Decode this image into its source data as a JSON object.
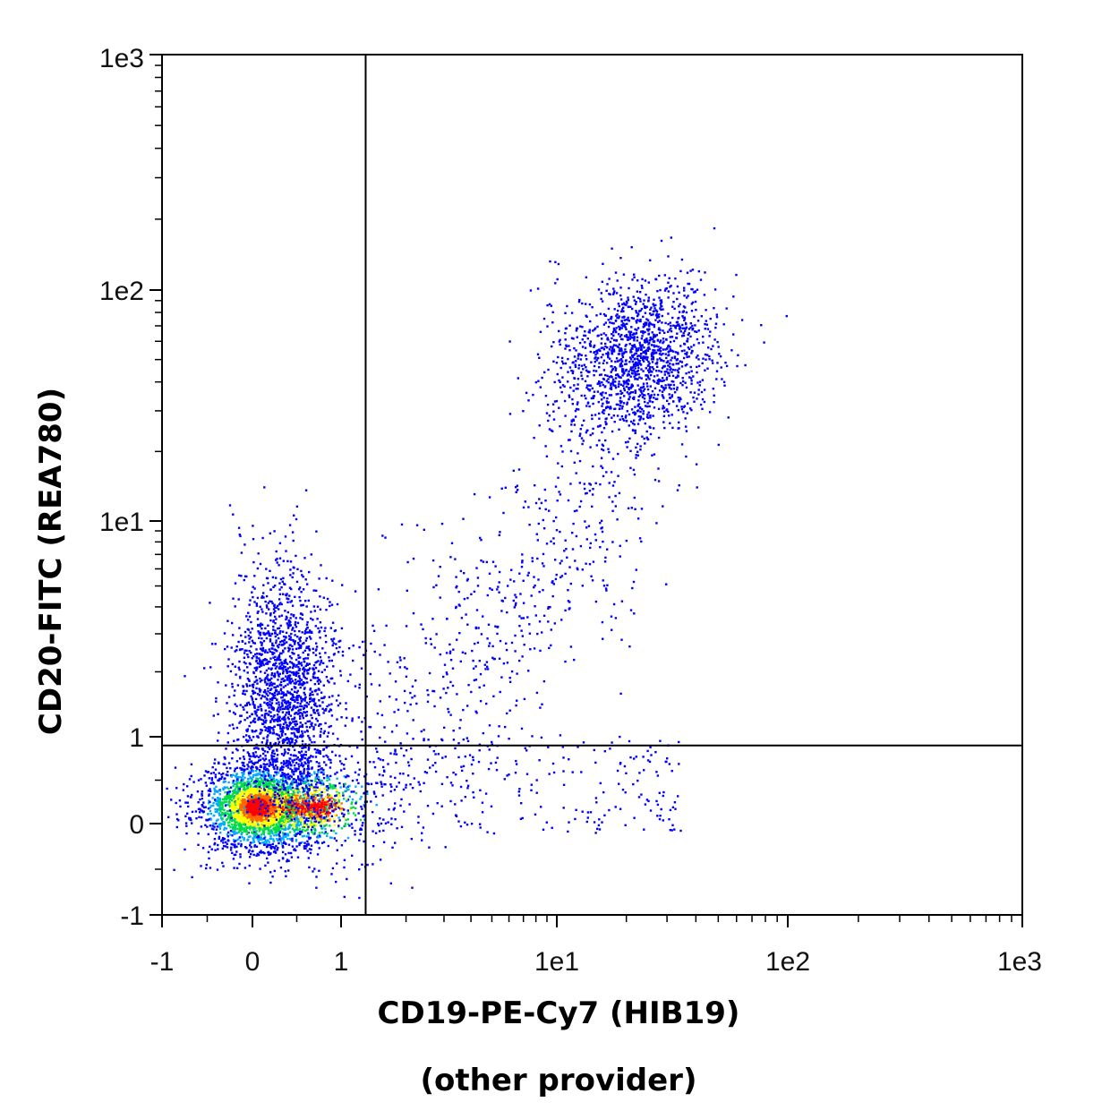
{
  "chart_data": {
    "type": "scatter",
    "subtype": "flow-cytometry density dot plot",
    "xlabel": "CD19-PE-Cy7 (HIB19)",
    "xlabel_sub": "(other provider)",
    "ylabel": "CD20-FITC (REA780)",
    "x_scale": "biexponential",
    "y_scale": "biexponential",
    "x_range": [
      -1,
      1000
    ],
    "y_range": [
      -1,
      1000
    ],
    "x_ticks": [
      {
        "value": -1,
        "label": "-1"
      },
      {
        "value": 0,
        "label": "0"
      },
      {
        "value": 1,
        "label": "1"
      },
      {
        "value": 10,
        "label": "1e1"
      },
      {
        "value": 100,
        "label": "1e2"
      },
      {
        "value": 1000,
        "label": "1e3"
      }
    ],
    "y_ticks": [
      {
        "value": -1,
        "label": "-1"
      },
      {
        "value": 0,
        "label": "0"
      },
      {
        "value": 1,
        "label": "1"
      },
      {
        "value": 10,
        "label": "1e1"
      },
      {
        "value": 100,
        "label": "1e2"
      },
      {
        "value": 1000,
        "label": "1e3"
      }
    ],
    "quadrant_gate": {
      "x": 1.3,
      "y": 0.9
    },
    "populations": [
      {
        "cx": 0.05,
        "cy": 0.2,
        "share": 0.72
      },
      {
        "cx": 0.2,
        "cy": 2.0,
        "share": 0.12
      },
      {
        "cx": 22,
        "cy": 50,
        "share": 0.1
      },
      {
        "cx": 3,
        "cy": 1.5,
        "share": 0.06
      }
    ],
    "density_colors": [
      "#0000ff",
      "#00aaff",
      "#00dd44",
      "#ffff00",
      "#ff6600",
      "#ff0000"
    ],
    "grid": false,
    "legend": "none"
  }
}
